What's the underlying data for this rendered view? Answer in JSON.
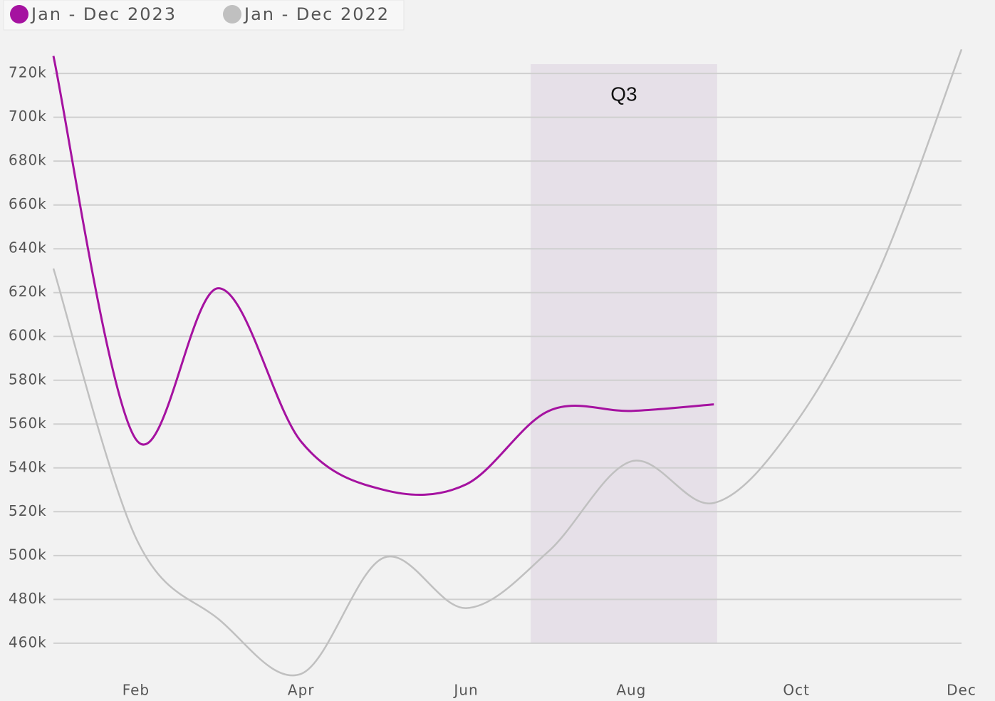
{
  "chart_data": {
    "type": "line",
    "categories": [
      null,
      "Feb",
      null,
      "Apr",
      null,
      "Jun",
      null,
      "Aug",
      null,
      "Oct",
      null,
      "Dec"
    ],
    "series": [
      {
        "name": "Jan - Dec 2023",
        "color": "#a512a0",
        "values": [
          728000,
          553000,
          622000,
          552000,
          530000,
          532500,
          566000,
          566000,
          569000,
          null,
          null,
          null
        ]
      },
      {
        "name": "Jan - Dec 2022",
        "color": "#c0c0c0",
        "values": [
          631000,
          508000,
          471000,
          446000,
          499000,
          476000,
          502000,
          543000,
          524000,
          561000,
          630000,
          731000
        ]
      }
    ],
    "ylim": [
      445000,
      735000
    ],
    "yticks": [
      {
        "value": 460000,
        "label": "460k"
      },
      {
        "value": 480000,
        "label": "480k"
      },
      {
        "value": 500000,
        "label": "500k"
      },
      {
        "value": 520000,
        "label": "520k"
      },
      {
        "value": 540000,
        "label": "540k"
      },
      {
        "value": 560000,
        "label": "560k"
      },
      {
        "value": 580000,
        "label": "580k"
      },
      {
        "value": 600000,
        "label": "600k"
      },
      {
        "value": 620000,
        "label": "620k"
      },
      {
        "value": 640000,
        "label": "640k"
      },
      {
        "value": 660000,
        "label": "660k"
      },
      {
        "value": 680000,
        "label": "680k"
      },
      {
        "value": 700000,
        "label": "700k"
      },
      {
        "value": 720000,
        "label": "720k"
      }
    ],
    "grid": true,
    "legend": "top",
    "annotation": "Q3"
  }
}
